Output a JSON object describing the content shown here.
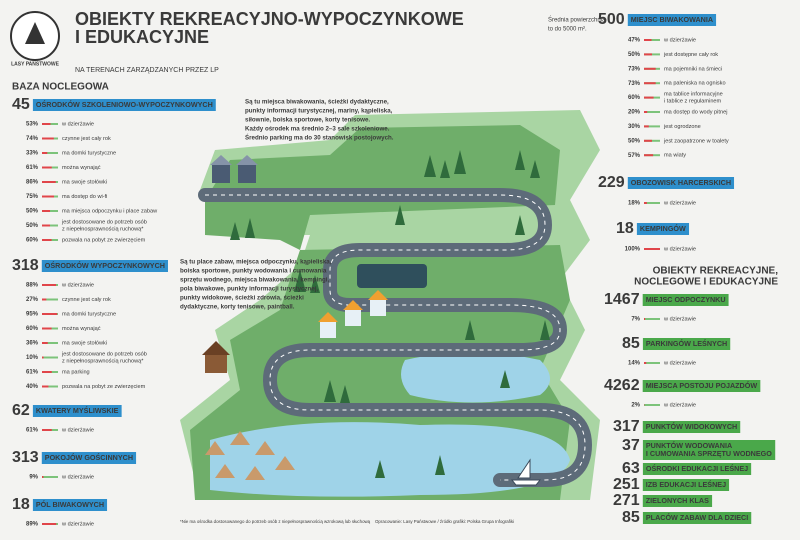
{
  "header": {
    "logo": "LASY PAŃSTWOWE",
    "title_lines": [
      "OBIEKTY REKREACYJNO-WYPOCZYNKOWE",
      "I EDUKACYJNE"
    ],
    "subtitle": "NA TERENACH ZARZĄDZANYCH PRZEZ LP",
    "note": [
      "Średnia powierzchnia",
      "to do 5000 m²."
    ]
  },
  "left": {
    "heading": "BAZA NOCLEGOWA",
    "sections": [
      {
        "count": 45,
        "label": "OŚRODKÓW SZKOLENIOWO-WYPOCZYNKOWYCH",
        "items": [
          {
            "value": 53,
            "value_label": "53%",
            "text": [
              "w dzierżawie"
            ]
          },
          {
            "value": 74,
            "value_label": "74%",
            "text": [
              "czynne jest cały rok"
            ]
          },
          {
            "value": 33,
            "value_label": "33%",
            "text": [
              "ma domki turystyczne"
            ]
          },
          {
            "value": 61,
            "value_label": "61%",
            "text": [
              "można wynająć"
            ]
          },
          {
            "value": 86,
            "value_label": "86%",
            "text": [
              "ma swoje stołówki"
            ]
          },
          {
            "value": 75,
            "value_label": "75%",
            "text": [
              "ma dostęp do wi-fi"
            ]
          },
          {
            "value": 50,
            "value_label": "50%",
            "text": [
              "ma miejsca odpoczynku i place zabaw"
            ]
          },
          {
            "value": 50,
            "value_label": "50%",
            "text": [
              "jest dostosowane do potrzeb osób",
              "z niepełnosprawnością ruchową*"
            ]
          },
          {
            "value": 60,
            "value_label": "60%",
            "text": [
              "pozwala na pobyt ze zwierzęciem"
            ]
          }
        ]
      },
      {
        "count": 318,
        "label": "OŚRODKÓW WYPOCZYNKOWYCH",
        "items": [
          {
            "value": 88,
            "value_label": "88%",
            "text": [
              "w dzierżawie"
            ]
          },
          {
            "value": 27,
            "value_label": "27%",
            "text": [
              "czynne jest cały rok"
            ]
          },
          {
            "value": 95,
            "value_label": "95%",
            "text": [
              "ma domki turystyczne"
            ]
          },
          {
            "value": 60,
            "value_label": "60%",
            "text": [
              "można wynająć"
            ]
          },
          {
            "value": 36,
            "value_label": "36%",
            "text": [
              "ma swoje stołówki"
            ]
          },
          {
            "value": 10,
            "value_label": "10%",
            "text": [
              "jest dostosowane do potrzeb osób",
              "z niepełnosprawnością ruchową*"
            ]
          },
          {
            "value": 61,
            "value_label": "61%",
            "text": [
              "ma parking"
            ]
          },
          {
            "value": 40,
            "value_label": "40%",
            "text": [
              "pozwala na pobyt ze zwierzęciem"
            ]
          }
        ]
      },
      {
        "count": 62,
        "label": "KWATERY MYŚLIWSKIE",
        "items": [
          {
            "value": 61,
            "value_label": "61%",
            "text": [
              "w dzierżawie"
            ]
          }
        ]
      },
      {
        "count": 313,
        "label": "POKOJÓW GOŚCINNYCH",
        "items": [
          {
            "value": 9,
            "value_label": "9%",
            "text": [
              "w dzierżawie"
            ]
          }
        ]
      },
      {
        "count": 18,
        "label": "PÓL BIWAKOWYCH",
        "items": [
          {
            "value": 89,
            "value_label": "89%",
            "text": [
              "w dzierżawie"
            ]
          }
        ]
      }
    ]
  },
  "right": {
    "sections": [
      {
        "count": 500,
        "label": "MIEJSC BIWAKOWANIA",
        "items": [
          {
            "value": 47,
            "value_label": "47%",
            "text": [
              "w dzierżawie"
            ]
          },
          {
            "value": 50,
            "value_label": "50%",
            "text": [
              "jest dostępne cały rok"
            ]
          },
          {
            "value": 73,
            "value_label": "73%",
            "text": [
              "ma pojemniki na śmieci"
            ]
          },
          {
            "value": 73,
            "value_label": "73%",
            "text": [
              "ma paleniska na ognisko"
            ]
          },
          {
            "value": 60,
            "value_label": "60%",
            "text": [
              "ma tablice informacyjne",
              "i tablice z regulaminem"
            ]
          },
          {
            "value": 20,
            "value_label": "20%",
            "text": [
              "ma dostęp do wody pitnej"
            ]
          },
          {
            "value": 30,
            "value_label": "30%",
            "text": [
              "jest ogrodzone"
            ]
          },
          {
            "value": 50,
            "value_label": "50%",
            "text": [
              "jest zaopatrzone w toalety"
            ]
          },
          {
            "value": 57,
            "value_label": "57%",
            "text": [
              "ma wiaty"
            ]
          }
        ]
      },
      {
        "count": 229,
        "label": "OBOZOWISK HARCERSKICH",
        "items": [
          {
            "value": 18,
            "value_label": "18%",
            "text": [
              "w dzierżawie"
            ]
          }
        ]
      },
      {
        "count": 18,
        "label": "KEMPINGÓW",
        "items": [
          {
            "value": 100,
            "value_label": "100%",
            "text": [
              "w dzierżawie"
            ]
          }
        ]
      }
    ],
    "heading": [
      "OBIEKTY REKREACYJNE,",
      "NOCLEGOWE I EDUKACYJNE"
    ],
    "green_sections": [
      {
        "count": 1467,
        "label": "MIEJSC ODPOCZYNKU",
        "items": [
          {
            "value": 7,
            "value_label": "7%",
            "text": [
              "w dzierżawie"
            ]
          }
        ]
      },
      {
        "count": 85,
        "label": "PARKINGÓW LEŚNYCH",
        "items": [
          {
            "value": 14,
            "value_label": "14%",
            "text": [
              "w dzierżawie"
            ]
          }
        ]
      },
      {
        "count": 4262,
        "label": "MIEJSCA POSTOJU POJAZDÓW",
        "items": [
          {
            "value": 2,
            "value_label": "2%",
            "text": [
              "w dzierżawie"
            ]
          }
        ]
      }
    ],
    "facilities": [
      {
        "count": 317,
        "label": [
          "PUNKTÓW WIDOKOWYCH"
        ]
      },
      {
        "count": 37,
        "label": [
          "PUNKTÓW WODOWANIA",
          "I CUMOWANIA SPRZĘTU WODNEGO"
        ]
      },
      {
        "count": 63,
        "label": [
          "OŚRODKI EDUKACJI LEŚNEJ"
        ]
      },
      {
        "count": 251,
        "label": [
          "IZB EDUKACJI LEŚNEJ"
        ]
      },
      {
        "count": 271,
        "label": [
          "ZIELONYCH KLAS"
        ]
      },
      {
        "count": 85,
        "label": [
          "PLACÓW ZABAW DLA DZIECI"
        ]
      }
    ]
  },
  "descriptions": [
    [
      "Są tu miejsca biwakowania, ścieżki dydaktyczne,",
      "punkty informacji turystycznej, mariny, kąpieliska,",
      "siłownie, boiska sportowe, korty tenisowe.",
      "Każdy ośrodek ma średnio 2–3 sale szkoleniowe.",
      "Średnio parking ma do 30 stanowisk postojowych."
    ],
    [
      "Są tu place zabaw, miejsca odpoczynku, kąpieliska,",
      "boiska sportowe, punkty wodowania i cumowania",
      "sprzętu wodnego, miejsca biwakowania, kempingi,",
      "pola biwakowe, punkty informacji turystycznej,",
      "punkty widokowe, ścieżki zdrowia, ścieżki",
      "dydaktyczne, korty tenisowe, paintball."
    ]
  ],
  "footer": {
    "note": "*Nie ma ośrodka dostosowanego do potrzeb osób z niepełnosprawnością wzrokową lub słuchową",
    "source": "Opracowanie: Lasy Państwowe / źródło grafiki: Polska Grupa Infografiki"
  }
}
